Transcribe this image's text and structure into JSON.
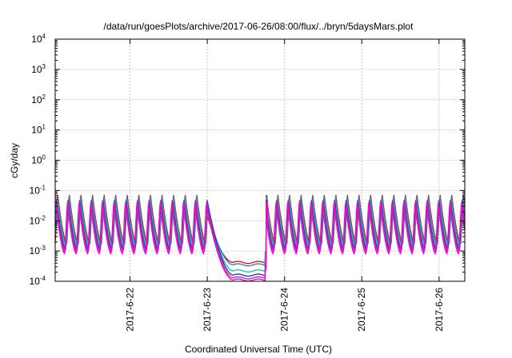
{
  "chart_data": {
    "type": "line",
    "title": "/data/run/goesPlots/archive/2017-06-26/08:00/flux/../bryn/5daysMars.plot",
    "xlabel": "Coordinated Universal Time (UTC)",
    "ylabel": "cGy/day",
    "xlim": [
      "2017-06-21T00:45",
      "2017-06-26T08:00"
    ],
    "ylim": [
      0.0001,
      10000
    ],
    "yscale": "log",
    "grid": true,
    "x_ticks": [
      {
        "label": "2017-6-22",
        "value": "2017-06-22T00:00"
      },
      {
        "label": "2017-6-23",
        "value": "2017-06-23T00:00"
      },
      {
        "label": "2017-6-24",
        "value": "2017-06-24T00:00"
      },
      {
        "label": "2017-6-25",
        "value": "2017-06-25T00:00"
      },
      {
        "label": "2017-6-26",
        "value": "2017-06-26T00:00"
      }
    ],
    "y_ticks": [
      {
        "base": "10",
        "exp": "-4",
        "value": 0.0001
      },
      {
        "base": "10",
        "exp": "-3",
        "value": 0.001
      },
      {
        "base": "10",
        "exp": "-2",
        "value": 0.01
      },
      {
        "base": "10",
        "exp": "-1",
        "value": 0.1
      },
      {
        "base": "10",
        "exp": "0",
        "value": 1
      },
      {
        "base": "10",
        "exp": "1",
        "value": 10
      },
      {
        "base": "10",
        "exp": "2",
        "value": 100
      },
      {
        "base": "10",
        "exp": "3",
        "value": 1000
      },
      {
        "base": "10",
        "exp": "4",
        "value": 10000
      }
    ],
    "oscillation_period_hours": 3.6,
    "dip": {
      "start": "2017-06-23T00:00",
      "floor_start": "2017-06-23T08:00",
      "end": "2017-06-23T18:20"
    },
    "series": [
      {
        "color": "#e41a1c",
        "peak": 0.07,
        "trough": 0.0018,
        "floor": 0.00042
      },
      {
        "color": "#377eb8",
        "peak": 0.065,
        "trough": 0.0016,
        "floor": 0.00035
      },
      {
        "color": "#1fc8a0",
        "peak": 0.055,
        "trough": 0.0013,
        "floor": 0.00022
      },
      {
        "color": "#3a3a8c",
        "peak": 0.05,
        "trough": 0.0011,
        "floor": 0.00016
      },
      {
        "color": "#9b30d9",
        "peak": 0.045,
        "trough": 0.00095,
        "floor": 0.00013
      },
      {
        "color": "#ff00cc",
        "peak": 0.04,
        "trough": 0.0008,
        "floor": 0.00011
      }
    ]
  }
}
